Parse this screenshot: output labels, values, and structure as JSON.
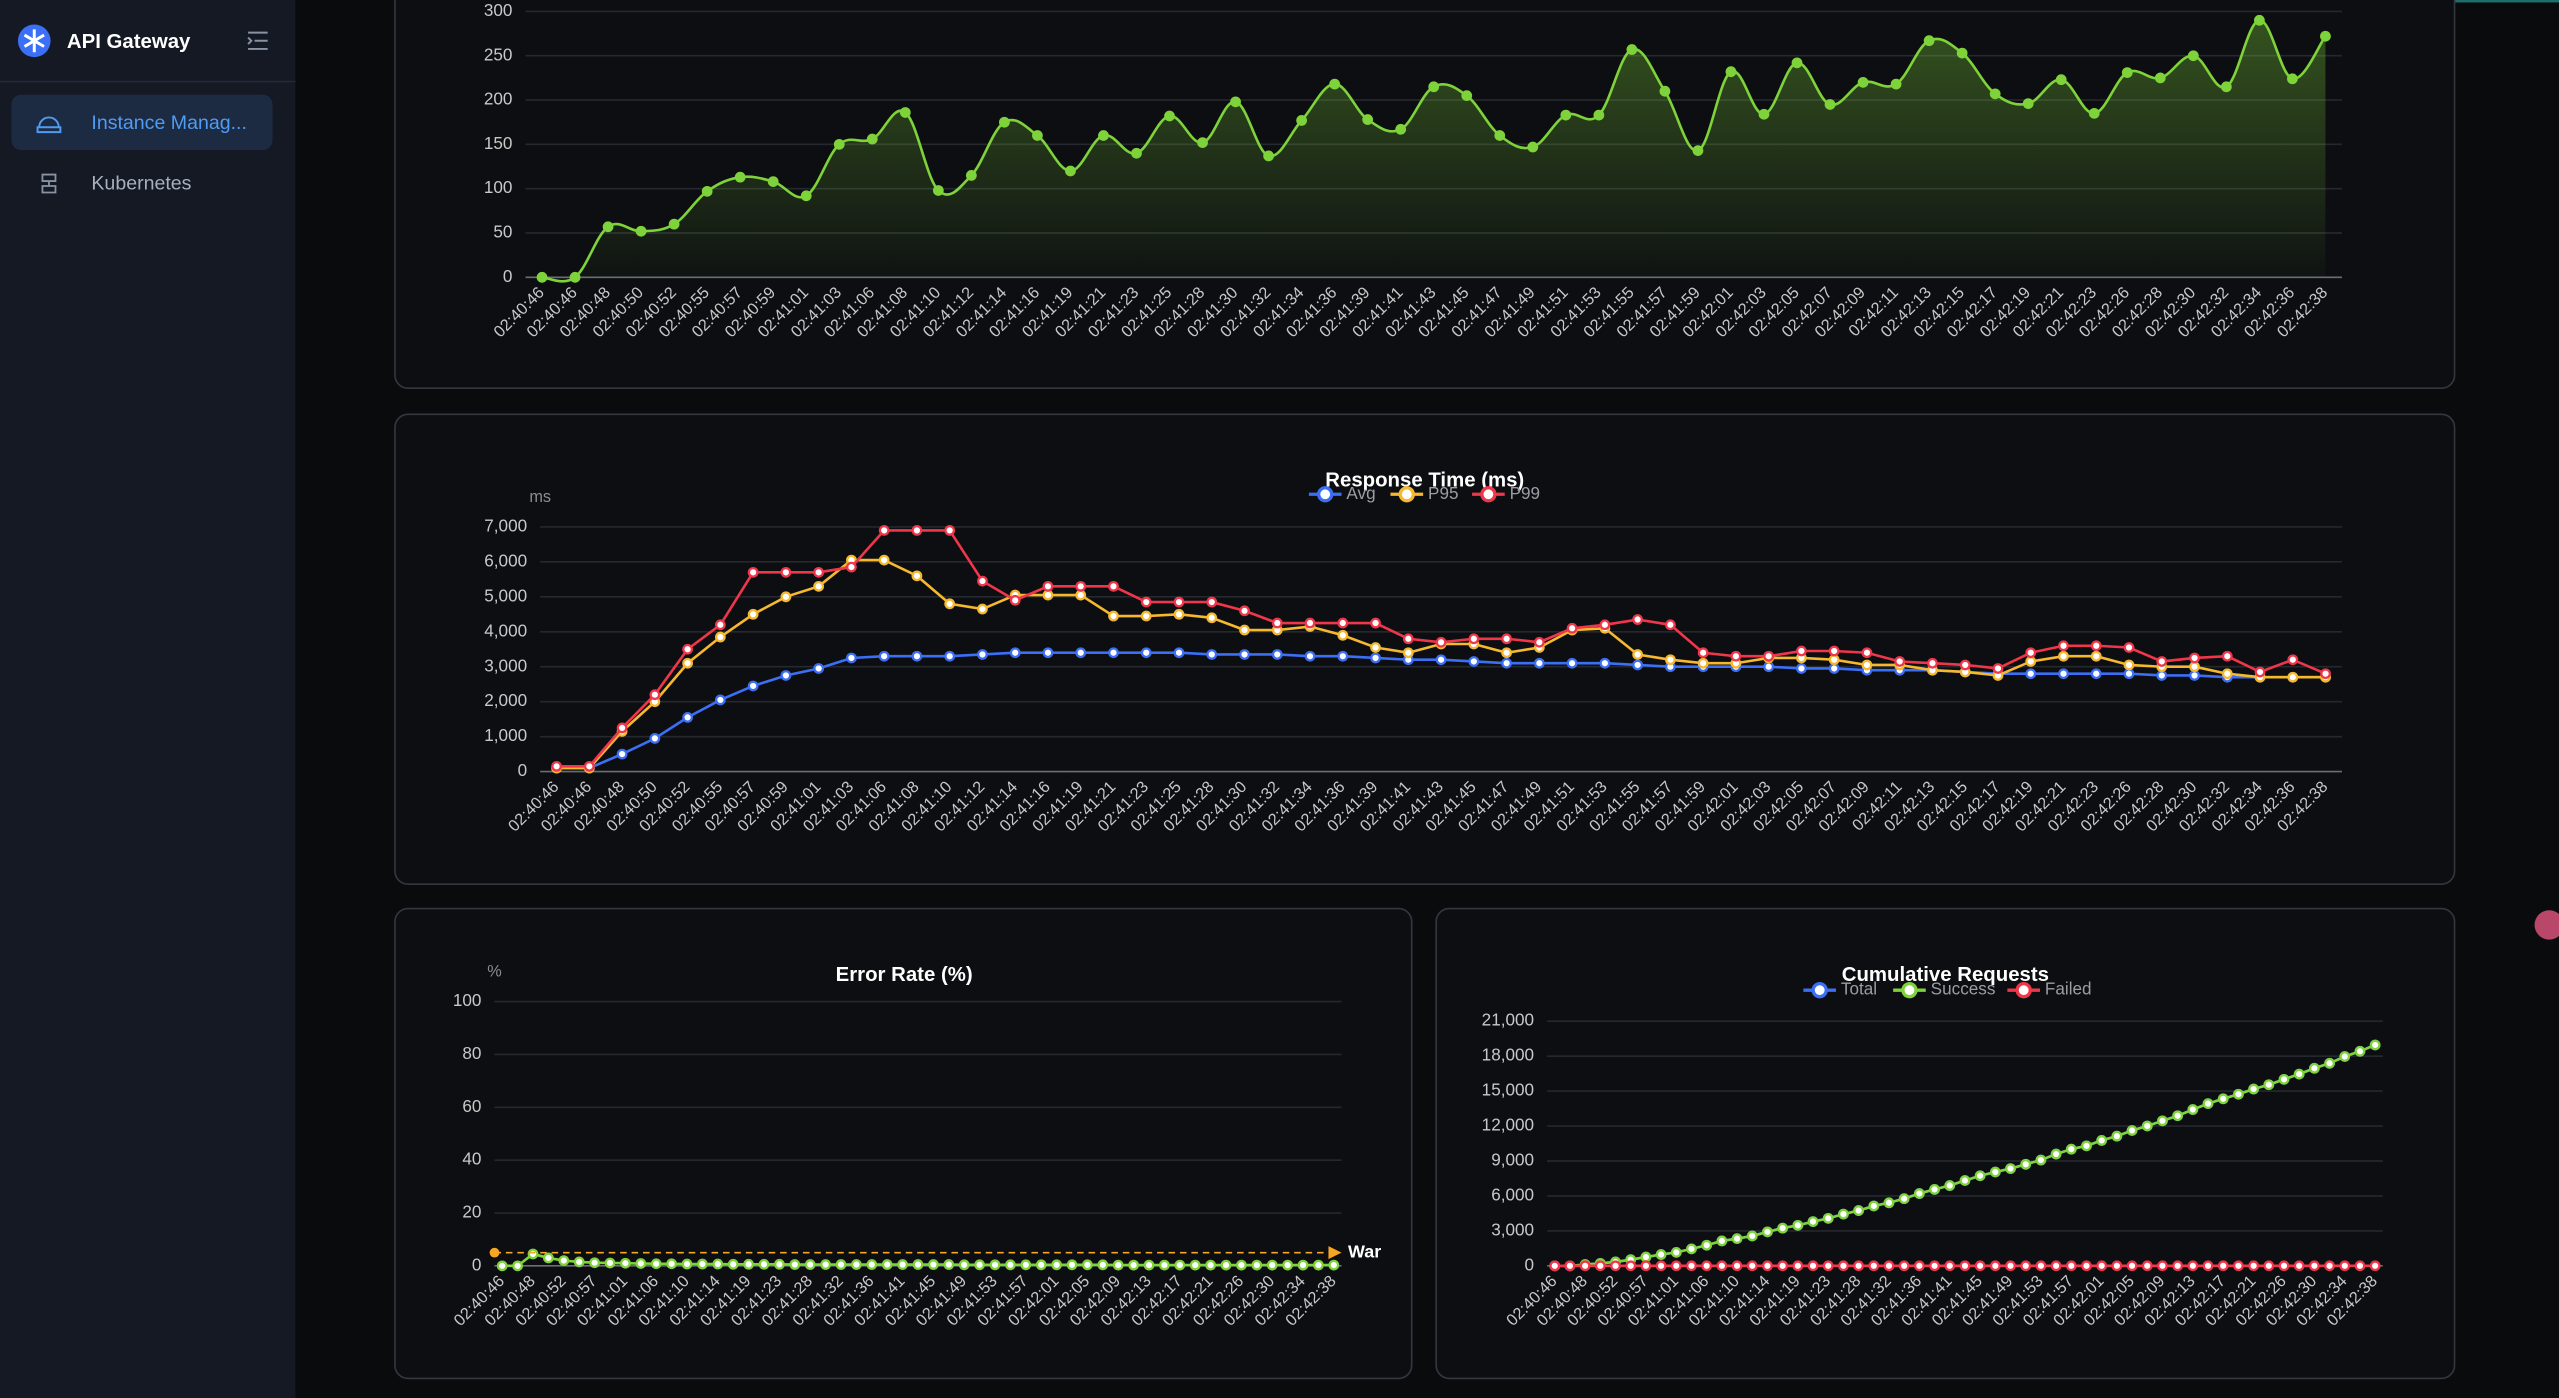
{
  "sidebar": {
    "title": "API Gateway",
    "menu": [
      "Instance Manag...",
      "Kubernetes"
    ]
  },
  "chart_data": [
    {
      "type": "line",
      "smooth": true,
      "area": true,
      "color": "#7ed33a",
      "categories": [
        "02:40:46",
        "02:40:46",
        "02:40:48",
        "02:40:50",
        "02:40:52",
        "02:40:55",
        "02:40:57",
        "02:40:59",
        "02:41:01",
        "02:41:03",
        "02:41:06",
        "02:41:08",
        "02:41:10",
        "02:41:12",
        "02:41:14",
        "02:41:16",
        "02:41:19",
        "02:41:21",
        "02:41:23",
        "02:41:25",
        "02:41:28",
        "02:41:30",
        "02:41:32",
        "02:41:34",
        "02:41:36",
        "02:41:39",
        "02:41:41",
        "02:41:43",
        "02:41:45",
        "02:41:47",
        "02:41:49",
        "02:41:51",
        "02:41:53",
        "02:41:55",
        "02:41:57",
        "02:41:59",
        "02:42:01",
        "02:42:03",
        "02:42:05",
        "02:42:07",
        "02:42:09",
        "02:42:11",
        "02:42:13",
        "02:42:15",
        "02:42:17",
        "02:42:19",
        "02:42:21",
        "02:42:23",
        "02:42:26",
        "02:42:28",
        "02:42:30",
        "02:42:32",
        "02:42:34",
        "02:42:36",
        "02:42:38"
      ],
      "values": [
        0,
        0,
        57,
        52,
        60,
        97,
        113,
        108,
        92,
        150,
        156,
        186,
        98,
        115,
        175,
        160,
        120,
        160,
        140,
        182,
        152,
        198,
        137,
        177,
        218,
        178,
        167,
        215,
        205,
        160,
        147,
        183,
        183,
        257,
        210,
        143,
        232,
        184,
        242,
        195,
        220,
        218,
        267,
        253,
        207,
        196,
        223,
        185,
        231,
        225,
        250,
        215,
        290,
        224,
        272
      ],
      "ylim": [
        0,
        300
      ],
      "yticks": [
        0,
        50,
        100,
        150,
        200,
        250,
        300
      ],
      "grid": true
    },
    {
      "type": "line",
      "title": "Response Time (ms)",
      "y_unit": "ms",
      "categories": [
        "02:40:46",
        "02:40:46",
        "02:40:48",
        "02:40:50",
        "02:40:52",
        "02:40:55",
        "02:40:57",
        "02:40:59",
        "02:41:01",
        "02:41:03",
        "02:41:06",
        "02:41:08",
        "02:41:10",
        "02:41:12",
        "02:41:14",
        "02:41:16",
        "02:41:19",
        "02:41:21",
        "02:41:23",
        "02:41:25",
        "02:41:28",
        "02:41:30",
        "02:41:32",
        "02:41:34",
        "02:41:36",
        "02:41:39",
        "02:41:41",
        "02:41:43",
        "02:41:45",
        "02:41:47",
        "02:41:49",
        "02:41:51",
        "02:41:53",
        "02:41:55",
        "02:41:57",
        "02:41:59",
        "02:42:01",
        "02:42:03",
        "02:42:05",
        "02:42:07",
        "02:42:09",
        "02:42:11",
        "02:42:13",
        "02:42:15",
        "02:42:17",
        "02:42:19",
        "02:42:21",
        "02:42:23",
        "02:42:26",
        "02:42:28",
        "02:42:30",
        "02:42:32",
        "02:42:34",
        "02:42:36",
        "02:42:38"
      ],
      "series": [
        {
          "name": "Avg",
          "color": "#3b6ff5",
          "values": [
            100,
            100,
            500,
            950,
            1550,
            2050,
            2450,
            2750,
            2950,
            3250,
            3300,
            3300,
            3300,
            3350,
            3400,
            3400,
            3400,
            3400,
            3400,
            3400,
            3350,
            3350,
            3350,
            3300,
            3300,
            3250,
            3200,
            3200,
            3150,
            3100,
            3100,
            3100,
            3100,
            3050,
            3000,
            3000,
            3000,
            3000,
            2950,
            2950,
            2900,
            2900,
            2900,
            2850,
            2800,
            2800,
            2800,
            2800,
            2800,
            2750,
            2750,
            2700,
            2700,
            2700,
            2700
          ]
        },
        {
          "name": "P95",
          "color": "#f5b82e",
          "values": [
            100,
            100,
            1150,
            2000,
            3100,
            3850,
            4500,
            5000,
            5300,
            6050,
            6050,
            5600,
            4800,
            4650,
            5050,
            5050,
            5050,
            4450,
            4450,
            4500,
            4400,
            4050,
            4050,
            4150,
            3900,
            3550,
            3400,
            3650,
            3650,
            3400,
            3550,
            4050,
            4100,
            3350,
            3200,
            3100,
            3100,
            3250,
            3250,
            3200,
            3050,
            3050,
            2900,
            2850,
            2750,
            3150,
            3300,
            3300,
            3050,
            3000,
            3000,
            2800,
            2700,
            2700,
            2700
          ]
        },
        {
          "name": "P99",
          "color": "#f0364a",
          "values": [
            150,
            150,
            1250,
            2200,
            3500,
            4200,
            5700,
            5700,
            5700,
            5850,
            6900,
            6900,
            6900,
            5450,
            4900,
            5300,
            5300,
            5300,
            4850,
            4850,
            4850,
            4600,
            4250,
            4250,
            4250,
            4250,
            3800,
            3700,
            3800,
            3800,
            3700,
            4100,
            4200,
            4350,
            4200,
            3400,
            3300,
            3300,
            3450,
            3450,
            3400,
            3150,
            3100,
            3050,
            2950,
            3400,
            3600,
            3600,
            3550,
            3150,
            3250,
            3300,
            2850,
            3200,
            2800
          ]
        }
      ],
      "ylim": [
        0,
        7000
      ],
      "yticks": [
        0,
        {
          "value": 1000,
          "label": "1,000"
        },
        {
          "value": 2000,
          "label": "2,000"
        },
        {
          "value": 3000,
          "label": "3,000"
        },
        {
          "value": 4000,
          "label": "4,000"
        },
        {
          "value": 5000,
          "label": "5,000"
        },
        {
          "value": 6000,
          "label": "6,000"
        },
        {
          "value": 7000,
          "label": "7,000"
        }
      ],
      "grid": true
    },
    {
      "type": "line",
      "title": "Error Rate (%)",
      "y_unit": "%",
      "color": "#7ed33a",
      "categories": [
        "02:40:46",
        null,
        "02:40:48",
        null,
        "02:40:52",
        null,
        "02:40:57",
        null,
        "02:41:01",
        null,
        "02:41:06",
        null,
        "02:41:10",
        null,
        "02:41:14",
        null,
        "02:41:19",
        null,
        "02:41:23",
        null,
        "02:41:28",
        null,
        "02:41:32",
        null,
        "02:41:36",
        null,
        "02:41:41",
        null,
        "02:41:45",
        null,
        "02:41:49",
        null,
        "02:41:53",
        null,
        "02:41:57",
        null,
        "02:42:01",
        null,
        "02:42:05",
        null,
        "02:42:09",
        null,
        "02:42:13",
        null,
        "02:42:17",
        null,
        "02:42:21",
        null,
        "02:42:26",
        null,
        "02:42:30",
        null,
        "02:42:34",
        null,
        "02:42:38"
      ],
      "values": [
        0,
        0,
        4.5,
        3,
        2,
        1.5,
        1.2,
        1.1,
        1,
        0.9,
        0.8,
        0.8,
        0.7,
        0.7,
        0.7,
        0.6,
        0.6,
        0.6,
        0.6,
        0.5,
        0.5,
        0.5,
        0.5,
        0.5,
        0.5,
        0.5,
        0.5,
        0.5,
        0.5,
        0.5,
        0.4,
        0.4,
        0.4,
        0.4,
        0.4,
        0.4,
        0.4,
        0.4,
        0.4,
        0.4,
        0.3,
        0.3,
        0.3,
        0.3,
        0.3,
        0.3,
        0.3,
        0.3,
        0.3,
        0.3,
        0.3,
        0.3,
        0.3,
        0.3,
        0.3
      ],
      "mark_line": {
        "value": 5,
        "label": "War",
        "color": "#f5a623"
      },
      "ylim": [
        0,
        100
      ],
      "yticks": [
        0,
        20,
        40,
        60,
        80,
        100
      ],
      "grid": true
    },
    {
      "type": "line",
      "title": "Cumulative Requests",
      "categories": [
        "02:40:46",
        null,
        "02:40:48",
        null,
        "02:40:52",
        null,
        "02:40:57",
        null,
        "02:41:01",
        null,
        "02:41:06",
        null,
        "02:41:10",
        null,
        "02:41:14",
        null,
        "02:41:19",
        null,
        "02:41:23",
        null,
        "02:41:28",
        null,
        "02:41:32",
        null,
        "02:41:36",
        null,
        "02:41:41",
        null,
        "02:41:45",
        null,
        "02:41:49",
        null,
        "02:41:53",
        null,
        "02:41:57",
        null,
        "02:42:01",
        null,
        "02:42:05",
        null,
        "02:42:09",
        null,
        "02:42:13",
        null,
        "02:42:17",
        null,
        "02:42:21",
        null,
        "02:42:26",
        null,
        "02:42:30",
        null,
        "02:42:34",
        null,
        "02:42:38"
      ],
      "series": [
        {
          "name": "Total",
          "color": "#3b6ff5",
          "values": [
            0,
            0,
            114,
            218,
            338,
            532,
            758,
            974,
            1158,
            1458,
            1770,
            2142,
            2338,
            2568,
            2918,
            3238,
            3478,
            3798,
            4078,
            4442,
            4746,
            5142,
            5416,
            5770,
            6206,
            6562,
            6896,
            7326,
            7736,
            8056,
            8350,
            8716,
            9082,
            9596,
            10016,
            10302,
            10766,
            11134,
            11618,
            12008,
            12448,
            12884,
            13418,
            13924,
            14338,
            14730,
            15176,
            15546,
            16008,
            16458,
            16958,
            17388,
            17968,
            18416,
            18960
          ]
        },
        {
          "name": "Success",
          "color": "#7ed33a",
          "values": [
            0,
            0,
            114,
            218,
            338,
            532,
            758,
            974,
            1158,
            1458,
            1770,
            2142,
            2338,
            2568,
            2918,
            3238,
            3478,
            3798,
            4078,
            4442,
            4746,
            5142,
            5416,
            5770,
            6206,
            6562,
            6896,
            7326,
            7736,
            8056,
            8350,
            8716,
            9082,
            9596,
            10016,
            10302,
            10766,
            11134,
            11618,
            12008,
            12448,
            12884,
            13418,
            13924,
            14338,
            14730,
            15176,
            15546,
            16008,
            16458,
            16958,
            17388,
            17968,
            18416,
            18960
          ]
        },
        {
          "name": "Failed",
          "color": "#f0364a",
          "values": [
            0,
            0,
            6,
            6,
            6,
            6,
            6,
            6,
            6,
            6,
            6,
            6,
            6,
            6,
            6,
            6,
            6,
            6,
            6,
            6,
            6,
            6,
            6,
            6,
            6,
            6,
            6,
            6,
            6,
            6,
            6,
            6,
            6,
            6,
            6,
            6,
            6,
            6,
            6,
            6,
            6,
            6,
            6,
            6,
            6,
            6,
            6,
            6,
            6,
            6,
            6,
            6,
            6,
            6,
            6
          ]
        }
      ],
      "ylim": [
        0,
        21000
      ],
      "yticks": [
        0,
        {
          "value": 3000,
          "label": "3,000"
        },
        {
          "value": 6000,
          "label": "6,000"
        },
        {
          "value": 9000,
          "label": "9,000"
        },
        {
          "value": 12000,
          "label": "12,000"
        },
        {
          "value": 15000,
          "label": "15,000"
        },
        {
          "value": 18000,
          "label": "18,000"
        },
        {
          "value": 21000,
          "label": "21,000"
        }
      ],
      "grid": true
    }
  ]
}
